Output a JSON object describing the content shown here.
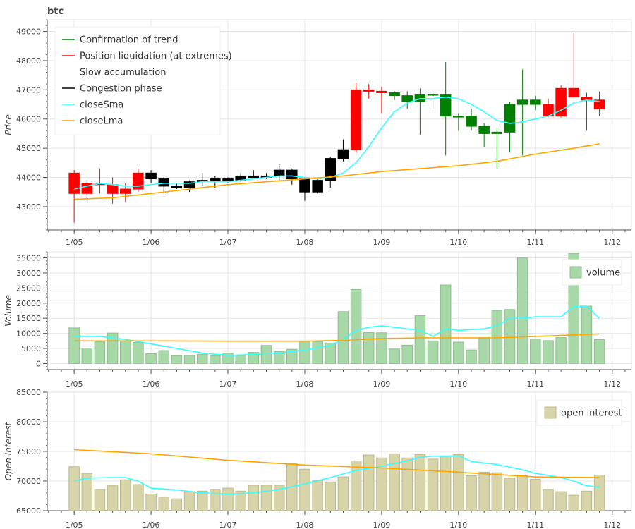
{
  "chart_data": [
    {
      "type": "candlestick",
      "title": "btc",
      "ylabel": "Price",
      "ylim": [
        42200,
        49400
      ],
      "yticks": [
        43000,
        44000,
        45000,
        46000,
        47000,
        48000,
        49000
      ],
      "xticks": [
        "1/05",
        "1/06",
        "1/07",
        "1/08",
        "1/09",
        "1/10",
        "1/11",
        "1/12"
      ],
      "xtick_days": [
        0,
        1,
        2,
        3,
        4,
        5,
        6,
        7
      ],
      "xlim_days": [
        -0.35,
        7.25
      ],
      "grid": true,
      "legend_position": "top-left",
      "legend": [
        {
          "label": "Confirmation of trend",
          "color": "#008000",
          "kind": "line"
        },
        {
          "label": "Position liquidation (at extremes)",
          "color": "#ff0000",
          "kind": "line"
        },
        {
          "label": "Slow accumulation",
          "color": "#ffffff",
          "kind": "line"
        },
        {
          "label": "Congestion phase",
          "color": "#000000",
          "kind": "line"
        },
        {
          "label": "closeSma",
          "color": "#33ffff",
          "kind": "line"
        },
        {
          "label": "closeLma",
          "color": "#ffa500",
          "kind": "line"
        }
      ],
      "candles": [
        {
          "t": 0.0,
          "o": 44150,
          "h": 44250,
          "l": 42450,
          "c": 43450,
          "phase": "liquidation"
        },
        {
          "t": 0.167,
          "o": 43450,
          "h": 43900,
          "l": 43200,
          "c": 43800,
          "phase": "liquidation"
        },
        {
          "t": 0.333,
          "o": 43800,
          "h": 44300,
          "l": 43450,
          "c": 43750,
          "phase": "liquidation"
        },
        {
          "t": 0.5,
          "o": 43750,
          "h": 44000,
          "l": 43100,
          "c": 43450,
          "phase": "liquidation"
        },
        {
          "t": 0.667,
          "o": 43450,
          "h": 43800,
          "l": 43150,
          "c": 43600,
          "phase": "liquidation"
        },
        {
          "t": 0.833,
          "o": 43600,
          "h": 44300,
          "l": 43500,
          "c": 44150,
          "phase": "liquidation"
        },
        {
          "t": 1.0,
          "o": 44150,
          "h": 44250,
          "l": 43800,
          "c": 43950,
          "phase": "congestion"
        },
        {
          "t": 1.167,
          "o": 43950,
          "h": 44000,
          "l": 43450,
          "c": 43700,
          "phase": "congestion"
        },
        {
          "t": 1.333,
          "o": 43700,
          "h": 43800,
          "l": 43600,
          "c": 43650,
          "phase": "congestion"
        },
        {
          "t": 1.5,
          "o": 43650,
          "h": 43900,
          "l": 43500,
          "c": 43850,
          "phase": "congestion"
        },
        {
          "t": 1.667,
          "o": 43850,
          "h": 44150,
          "l": 43700,
          "c": 43900,
          "phase": "congestion"
        },
        {
          "t": 1.833,
          "o": 43900,
          "h": 44050,
          "l": 43650,
          "c": 43950,
          "phase": "congestion"
        },
        {
          "t": 2.0,
          "o": 43950,
          "h": 44000,
          "l": 43800,
          "c": 43900,
          "phase": "congestion"
        },
        {
          "t": 2.167,
          "o": 43900,
          "h": 44150,
          "l": 43850,
          "c": 44050,
          "phase": "congestion"
        },
        {
          "t": 2.333,
          "o": 44050,
          "h": 44250,
          "l": 43950,
          "c": 44000,
          "phase": "congestion"
        },
        {
          "t": 2.5,
          "o": 44000,
          "h": 44150,
          "l": 43950,
          "c": 44050,
          "phase": "congestion"
        },
        {
          "t": 2.667,
          "o": 44050,
          "h": 44450,
          "l": 43900,
          "c": 44250,
          "phase": "congestion"
        },
        {
          "t": 2.833,
          "o": 44250,
          "h": 44300,
          "l": 43750,
          "c": 43950,
          "phase": "congestion"
        },
        {
          "t": 3.0,
          "o": 43950,
          "h": 44000,
          "l": 43200,
          "c": 43500,
          "phase": "congestion"
        },
        {
          "t": 3.167,
          "o": 43500,
          "h": 43950,
          "l": 43450,
          "c": 43900,
          "phase": "congestion"
        },
        {
          "t": 3.333,
          "o": 43900,
          "h": 44700,
          "l": 43650,
          "c": 44650,
          "phase": "congestion"
        },
        {
          "t": 3.5,
          "o": 44650,
          "h": 45300,
          "l": 44550,
          "c": 44950,
          "phase": "congestion"
        },
        {
          "t": 3.667,
          "o": 44950,
          "h": 47250,
          "l": 44850,
          "c": 47000,
          "phase": "liquidation"
        },
        {
          "t": 3.833,
          "o": 47000,
          "h": 47200,
          "l": 46700,
          "c": 46950,
          "phase": "liquidation"
        },
        {
          "t": 4.0,
          "o": 46950,
          "h": 47100,
          "l": 46200,
          "c": 46900,
          "phase": "liquidation"
        },
        {
          "t": 4.167,
          "o": 46900,
          "h": 46950,
          "l": 46650,
          "c": 46800,
          "phase": "trend"
        },
        {
          "t": 4.333,
          "o": 46800,
          "h": 46950,
          "l": 46350,
          "c": 46600,
          "phase": "trend"
        },
        {
          "t": 4.5,
          "o": 46600,
          "h": 47050,
          "l": 45450,
          "c": 46850,
          "phase": "trend"
        },
        {
          "t": 4.667,
          "o": 46850,
          "h": 46950,
          "l": 46350,
          "c": 46850,
          "phase": "trend"
        },
        {
          "t": 4.833,
          "o": 46850,
          "h": 47950,
          "l": 44750,
          "c": 46100,
          "phase": "trend"
        },
        {
          "t": 5.0,
          "o": 46100,
          "h": 46200,
          "l": 45600,
          "c": 46100,
          "phase": "trend"
        },
        {
          "t": 5.167,
          "o": 46100,
          "h": 46350,
          "l": 45600,
          "c": 45750,
          "phase": "trend"
        },
        {
          "t": 5.333,
          "o": 45750,
          "h": 45850,
          "l": 45050,
          "c": 45500,
          "phase": "trend"
        },
        {
          "t": 5.5,
          "o": 45500,
          "h": 45700,
          "l": 44300,
          "c": 45550,
          "phase": "trend"
        },
        {
          "t": 5.667,
          "o": 45550,
          "h": 46600,
          "l": 44850,
          "c": 46500,
          "phase": "trend"
        },
        {
          "t": 5.833,
          "o": 46500,
          "h": 47700,
          "l": 44750,
          "c": 46650,
          "phase": "trend"
        },
        {
          "t": 6.0,
          "o": 46650,
          "h": 46800,
          "l": 46300,
          "c": 46500,
          "phase": "trend"
        },
        {
          "t": 6.167,
          "o": 46500,
          "h": 46700,
          "l": 46050,
          "c": 46100,
          "phase": "liquidation"
        },
        {
          "t": 6.333,
          "o": 46100,
          "h": 47150,
          "l": 46050,
          "c": 47050,
          "phase": "liquidation"
        },
        {
          "t": 6.5,
          "o": 47050,
          "h": 48950,
          "l": 46750,
          "c": 46750,
          "phase": "liquidation"
        },
        {
          "t": 6.667,
          "o": 46750,
          "h": 46900,
          "l": 45600,
          "c": 46650,
          "phase": "liquidation"
        },
        {
          "t": 6.833,
          "o": 46650,
          "h": 46950,
          "l": 46100,
          "c": 46350,
          "phase": "liquidation"
        }
      ],
      "series": [
        {
          "name": "closeSma",
          "color": "#33ffff",
          "x": [
            0.0,
            0.167,
            0.333,
            0.5,
            0.667,
            0.833,
            1.0,
            1.167,
            1.333,
            1.5,
            1.667,
            1.833,
            2.0,
            2.167,
            2.333,
            2.5,
            2.667,
            2.833,
            3.0,
            3.167,
            3.333,
            3.5,
            3.667,
            3.833,
            4.0,
            4.167,
            4.333,
            4.5,
            4.667,
            4.833,
            5.0,
            5.167,
            5.333,
            5.5,
            5.667,
            5.833,
            6.0,
            6.167,
            6.333,
            6.5,
            6.667,
            6.833
          ],
          "values": [
            43600,
            43700,
            43800,
            43750,
            43700,
            43700,
            43750,
            43800,
            43800,
            43800,
            43850,
            43850,
            43850,
            43900,
            43950,
            44000,
            44050,
            44050,
            44000,
            43950,
            44000,
            44150,
            44500,
            45050,
            45700,
            46250,
            46550,
            46700,
            46700,
            46750,
            46700,
            46500,
            46250,
            45950,
            45850,
            45900,
            46000,
            46100,
            46300,
            46550,
            46650,
            46600
          ]
        },
        {
          "name": "closeLma",
          "color": "#ffa500",
          "x": [
            0.0,
            0.5,
            1.0,
            1.5,
            2.0,
            2.5,
            3.0,
            3.5,
            4.0,
            4.5,
            5.0,
            5.5,
            6.0,
            6.5,
            6.833
          ],
          "values": [
            43250,
            43300,
            43450,
            43600,
            43750,
            43850,
            43950,
            44050,
            44200,
            44300,
            44400,
            44550,
            44800,
            45000,
            45150
          ]
        }
      ]
    },
    {
      "type": "bar",
      "ylabel": "Volume",
      "ylim": [
        -2000,
        37000
      ],
      "yticks": [
        0,
        5000,
        10000,
        15000,
        20000,
        25000,
        30000,
        35000
      ],
      "xticks": [
        "1/05",
        "1/06",
        "1/07",
        "1/08",
        "1/09",
        "1/10",
        "1/11",
        "1/12"
      ],
      "xtick_days": [
        0,
        1,
        2,
        3,
        4,
        5,
        6,
        7
      ],
      "xlim_days": [
        -0.35,
        7.25
      ],
      "grid": true,
      "legend_position": "top-right",
      "legend": [
        {
          "label": "volume",
          "color": "#a8d8a8",
          "kind": "box"
        }
      ],
      "bar_color": "#a8d8a8",
      "bar_edge": "#8cc08c",
      "x": [
        0.0,
        0.167,
        0.333,
        0.5,
        0.667,
        0.833,
        1.0,
        1.167,
        1.333,
        1.5,
        1.667,
        1.833,
        2.0,
        2.167,
        2.333,
        2.5,
        2.667,
        2.833,
        3.0,
        3.167,
        3.333,
        3.5,
        3.667,
        3.833,
        4.0,
        4.167,
        4.333,
        4.5,
        4.667,
        4.833,
        5.0,
        5.167,
        5.333,
        5.5,
        5.667,
        5.833,
        6.0,
        6.167,
        6.333,
        6.5,
        6.667,
        6.833
      ],
      "values": [
        11800,
        5100,
        7200,
        10100,
        7600,
        7000,
        3300,
        4300,
        2600,
        2700,
        3100,
        2600,
        3400,
        2700,
        3700,
        6000,
        4000,
        4700,
        7500,
        7300,
        6800,
        17200,
        24500,
        10300,
        10200,
        4800,
        6100,
        15900,
        7500,
        26000,
        7100,
        4500,
        8600,
        17600,
        17900,
        35000,
        8100,
        7600,
        8600,
        36500,
        19000,
        7900
      ],
      "series": [
        {
          "name": "volume sma",
          "color": "#33ffff",
          "x": [
            0.0,
            0.333,
            0.667,
            1.0,
            1.333,
            1.667,
            2.0,
            2.333,
            2.667,
            3.0,
            3.333,
            3.5,
            3.667,
            3.833,
            4.0,
            4.167,
            4.333,
            4.5,
            4.667,
            4.833,
            5.0,
            5.333,
            5.5,
            5.667,
            5.833,
            6.0,
            6.333,
            6.5,
            6.667,
            6.833
          ],
          "values": [
            9000,
            9000,
            8000,
            6500,
            5000,
            3500,
            2700,
            3000,
            3500,
            4500,
            6000,
            8000,
            11000,
            12000,
            12500,
            12000,
            11500,
            11000,
            9000,
            11500,
            11000,
            11500,
            12500,
            15000,
            15000,
            15500,
            15500,
            19000,
            19000,
            15000
          ]
        },
        {
          "name": "volume lma",
          "color": "#ffa500",
          "x": [
            0.0,
            1.0,
            2.0,
            3.0,
            3.5,
            4.0,
            4.5,
            5.0,
            5.5,
            6.0,
            6.5,
            6.833
          ],
          "values": [
            7500,
            7500,
            7400,
            7400,
            7700,
            8300,
            8500,
            8500,
            8500,
            9000,
            9500,
            9800
          ]
        }
      ]
    },
    {
      "type": "bar",
      "ylabel": "Open Interest",
      "ylim": [
        65000,
        85000
      ],
      "yticks": [
        65000,
        70000,
        75000,
        80000,
        85000
      ],
      "xticks": [
        "1/05",
        "1/06",
        "1/07",
        "1/08",
        "1/09",
        "1/10",
        "1/11",
        "1/12"
      ],
      "xtick_days": [
        0,
        1,
        2,
        3,
        4,
        5,
        6,
        7
      ],
      "xlim_days": [
        -0.35,
        7.25
      ],
      "grid": true,
      "legend_position": "top-right",
      "legend": [
        {
          "label": "open interest",
          "color": "#d6d4a8",
          "kind": "box"
        }
      ],
      "bar_color": "#d6d4a8",
      "bar_edge": "#bdbb8c",
      "x": [
        0.0,
        0.167,
        0.333,
        0.5,
        0.667,
        0.833,
        1.0,
        1.167,
        1.333,
        1.5,
        1.667,
        1.833,
        2.0,
        2.167,
        2.333,
        2.5,
        2.667,
        2.833,
        3.0,
        3.167,
        3.333,
        3.5,
        3.667,
        3.833,
        4.0,
        4.167,
        4.333,
        4.5,
        4.667,
        4.833,
        5.0,
        5.167,
        5.333,
        5.5,
        5.667,
        5.833,
        6.0,
        6.167,
        6.333,
        6.5,
        6.667,
        6.833
      ],
      "values": [
        72400,
        71300,
        68600,
        69200,
        70200,
        69400,
        67800,
        67300,
        67000,
        68200,
        68300,
        68600,
        68800,
        68300,
        69300,
        69300,
        69300,
        73000,
        72000,
        70100,
        69800,
        70700,
        73400,
        74400,
        73900,
        74600,
        73900,
        74500,
        73700,
        74200,
        74500,
        70900,
        71500,
        71400,
        70500,
        70900,
        70300,
        68600,
        68200,
        67600,
        68300,
        71000
      ],
      "series": [
        {
          "name": "oi sma",
          "color": "#33ffff",
          "x": [
            0.0,
            0.167,
            0.5,
            0.667,
            0.833,
            1.0,
            1.333,
            1.667,
            2.0,
            2.333,
            2.667,
            3.0,
            3.333,
            3.667,
            4.0,
            4.333,
            4.5,
            4.667,
            4.833,
            5.0,
            5.167,
            5.5,
            5.833,
            6.0,
            6.333,
            6.5,
            6.667,
            6.833
          ],
          "values": [
            70000,
            70500,
            70600,
            70600,
            70000,
            68800,
            68500,
            68000,
            67800,
            68000,
            68600,
            69500,
            70600,
            71800,
            72500,
            73400,
            74000,
            74200,
            74200,
            74300,
            73300,
            72800,
            71900,
            71300,
            70600,
            70000,
            69200,
            69000
          ]
        },
        {
          "name": "oi lma",
          "color": "#ffa500",
          "x": [
            0.0,
            1.0,
            2.0,
            3.0,
            4.0,
            5.0,
            6.0,
            6.833
          ],
          "values": [
            75300,
            74600,
            73500,
            72700,
            72200,
            71500,
            70700,
            70600
          ]
        }
      ]
    }
  ]
}
